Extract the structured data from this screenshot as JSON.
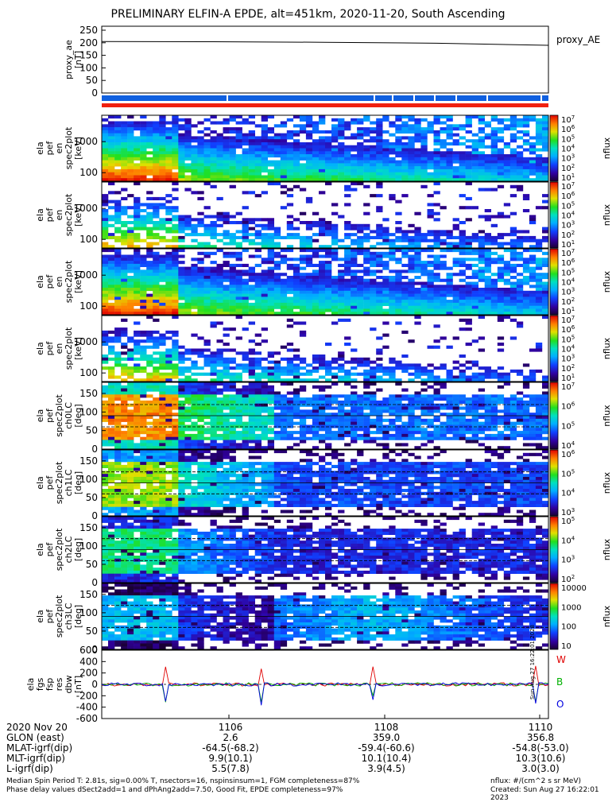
{
  "title": "PRELIMINARY ELFIN-A EPDE, alt=451km, 2020-11-20, South Ascending",
  "panel_labels": {
    "ae": [
      "proxy_ae",
      "[nT]"
    ],
    "spec1": [
      "ela",
      "pef",
      "en",
      "spec2plot",
      "[keV]"
    ],
    "spec2": [
      "ela",
      "pef",
      "en",
      "spec2plot",
      "[keV]"
    ],
    "spec3": [
      "ela",
      "pef",
      "en",
      "spec2plot",
      "[keV]"
    ],
    "spec4": [
      "ela",
      "pef",
      "en",
      "spec2plot",
      "[keV]"
    ],
    "pa0": [
      "ela",
      "pef",
      "spec2plot",
      "ch0LC",
      "[deg]"
    ],
    "pa1": [
      "ela",
      "pef",
      "spec2plot",
      "ch1LC",
      "[deg]"
    ],
    "pa2": [
      "ela",
      "pef",
      "spec2plot",
      "ch2LC",
      "[deg]"
    ],
    "pa3": [
      "ela",
      "pef",
      "spec2plot",
      "ch3LC",
      "[deg]"
    ],
    "fgm": [
      "ela",
      "fgs",
      "fsp",
      "res",
      "dbw",
      "[nT]"
    ]
  },
  "right_labels": {
    "ae": "proxy_AE",
    "flux": "nflux",
    "w": "W",
    "b": "B",
    "o": "O"
  },
  "colorbar_ticks": {
    "cb1": [
      "10^7",
      "10^6",
      "10^5",
      "10^4",
      "10^3",
      "10^2",
      "10^1"
    ],
    "cb2": [
      "10^7",
      "10^6",
      "10^5",
      "10^4",
      "10^3",
      "10^2",
      "10^1"
    ],
    "cb3": [
      "10^7",
      "10^6",
      "10^5",
      "10^4",
      "10^3",
      "10^2",
      "10^1"
    ],
    "cb4": [
      "10^7",
      "10^6",
      "10^5",
      "10^4",
      "10^3",
      "10^2",
      "10^1"
    ],
    "cb5": [
      "10^7",
      "10^6",
      "10^5",
      "10^4"
    ],
    "cb6": [
      "10^6",
      "10^5",
      "10^4",
      "10^3"
    ],
    "cb7": [
      "10^5",
      "10^4",
      "10^3",
      "10^2"
    ],
    "cb8": [
      "10000",
      "1000",
      "100",
      "10"
    ]
  },
  "side_stamp": "Sun Aug 27 16:22:01 2023",
  "footer": {
    "rows": [
      {
        "label": "2020 Nov 20",
        "values": [
          "1106",
          "1108",
          "1110"
        ]
      },
      {
        "label": "GLON (east)",
        "values": [
          "2.6",
          "359.0",
          "356.8"
        ]
      },
      {
        "label": "MLAT-igrf(dip)",
        "values": [
          "-64.5(-68.2)",
          "-59.4(-60.6)",
          "-54.8(-53.0)"
        ]
      },
      {
        "label": "MLT-igrf(dip)",
        "values": [
          "9.9(10.1)",
          "10.1(10.4)",
          "10.3(10.6)"
        ]
      },
      {
        "label": "L-igrf(dip)",
        "values": [
          "5.5(7.8)",
          "3.9(4.5)",
          "3.0(3.0)"
        ]
      }
    ],
    "note1": "Median Spin Period T: 2.81s, sig=0.00% T, nsectors=16, nspinsinsum=1, FGM completeness=87%",
    "note2": "Phase delay values dSect2add=1 and dPhAng2add=7.50, Good Fit, EPDE completeness=97%",
    "units": "nflux: #/(cm^2 s sr MeV)",
    "created": "Created: Sun Aug 27 16:22:01 2023"
  },
  "chart_data": [
    {
      "type": "line",
      "panel": "proxy_ae",
      "ylabel": "proxy_ae [nT]",
      "ylim": [
        0,
        250
      ],
      "yticks": [
        "250",
        "200",
        "150",
        "100",
        "50",
        "0"
      ],
      "x": [
        "1104",
        "1106",
        "1108",
        "1109",
        "1110"
      ],
      "series": [
        {
          "name": "proxy_AE",
          "values": [
            205,
            204,
            202,
            198,
            190
          ]
        }
      ]
    },
    {
      "type": "heatmap",
      "panel": "spectrogram 1",
      "ylabel": "ela pef en spec2plot [keV]",
      "yscale": "log",
      "yticks": [
        "1000",
        "100"
      ],
      "zlabel": "nflux",
      "zscale": "log",
      "zlim": [
        "10^1",
        "10^7"
      ]
    },
    {
      "type": "heatmap",
      "panel": "spectrogram 2",
      "ylabel": "ela pef en spec2plot [keV]",
      "yscale": "log",
      "yticks": [
        "1000",
        "100"
      ],
      "zlabel": "nflux",
      "zscale": "log",
      "zlim": [
        "10^1",
        "10^7"
      ]
    },
    {
      "type": "heatmap",
      "panel": "spectrogram 3",
      "ylabel": "ela pef en spec2plot [keV]",
      "yscale": "log",
      "yticks": [
        "1000",
        "100"
      ],
      "zlabel": "nflux",
      "zscale": "log",
      "zlim": [
        "10^1",
        "10^7"
      ]
    },
    {
      "type": "heatmap",
      "panel": "spectrogram 4",
      "ylabel": "ela pef en spec2plot [keV]",
      "yscale": "log",
      "yticks": [
        "1000",
        "100"
      ],
      "zlabel": "nflux",
      "zscale": "log",
      "zlim": [
        "10^1",
        "10^7"
      ]
    },
    {
      "type": "heatmap",
      "panel": "pitch angle ch0LC",
      "ylabel": "ela pef spec2plot ch0LC [deg]",
      "yticks": [
        "150",
        "100",
        "50",
        "0"
      ],
      "zlabel": "nflux",
      "zlim": [
        "10^4",
        "10^7"
      ]
    },
    {
      "type": "heatmap",
      "panel": "pitch angle ch1LC",
      "ylabel": "ela pef spec2plot ch1LC [deg]",
      "yticks": [
        "150",
        "100",
        "50",
        "0"
      ],
      "zlabel": "nflux",
      "zlim": [
        "10^3",
        "10^6"
      ]
    },
    {
      "type": "heatmap",
      "panel": "pitch angle ch2LC",
      "ylabel": "ela pef spec2plot ch2LC [deg]",
      "yticks": [
        "150",
        "100",
        "50",
        "0"
      ],
      "zlabel": "nflux",
      "zlim": [
        "10^2",
        "10^5"
      ]
    },
    {
      "type": "heatmap",
      "panel": "pitch angle ch3LC",
      "ylabel": "ela pef spec2plot ch3LC [deg]",
      "yticks": [
        "150",
        "100",
        "50",
        "0"
      ],
      "zlabel": "nflux",
      "zlim": [
        "10",
        "10000"
      ]
    },
    {
      "type": "line",
      "panel": "fgm residuals",
      "ylabel": "ela fgs fsp res dbw [nT]",
      "ylim": [
        -600,
        600
      ],
      "yticks": [
        "600",
        "400",
        "200",
        "0",
        "-200",
        "-400",
        "-600"
      ],
      "legend": [
        "W",
        "B",
        "O"
      ],
      "colors": {
        "W": "#e00000",
        "B": "#00b000",
        "O": "#0000e0"
      }
    }
  ]
}
